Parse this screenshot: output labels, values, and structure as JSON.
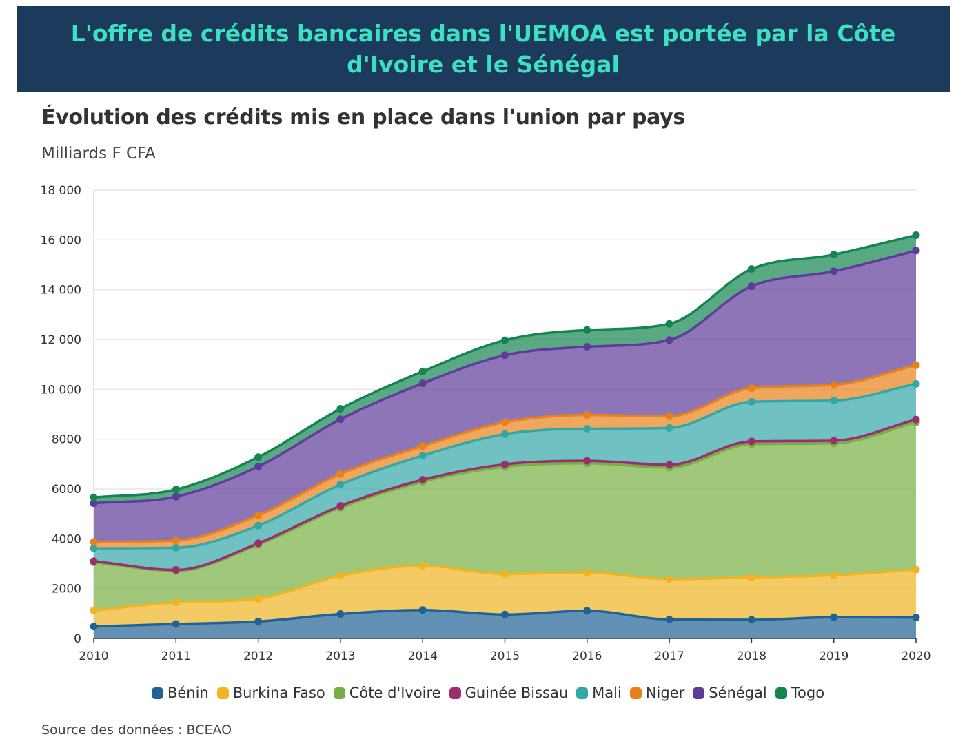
{
  "banner": {
    "title": "L'offre de crédits bancaires dans l'UEMOA est portée par la Côte d'Ivoire et le Sénégal"
  },
  "source": "Source des données : BCEAO",
  "chart_data": {
    "type": "area",
    "stacked": true,
    "title": "Évolution des crédits mis en place dans l'union par pays",
    "subtitle": "Milliards F CFA",
    "xlabel": "",
    "ylabel": "",
    "x": [
      2010,
      2011,
      2012,
      2013,
      2014,
      2015,
      2016,
      2017,
      2018,
      2019,
      2020
    ],
    "x_tick_labels": [
      "2010",
      "2011",
      "2012",
      "2013",
      "2014",
      "2015",
      "2016",
      "2017",
      "2018",
      "2019",
      "2020"
    ],
    "ylim": [
      0,
      18000
    ],
    "y_ticks": [
      0,
      2000,
      4000,
      6000,
      8000,
      10000,
      12000,
      14000,
      16000,
      18000
    ],
    "y_tick_labels": [
      "0",
      "2000",
      "4000",
      "6000",
      "8000",
      "10 000",
      "12 000",
      "14 000",
      "16 000",
      "18 000"
    ],
    "grid": true,
    "legend_position": "bottom",
    "series": [
      {
        "name": "Bénin",
        "color": "#1f6396",
        "values": [
          480,
          580,
          680,
          980,
          1140,
          960,
          1110,
          760,
          750,
          850,
          840
        ]
      },
      {
        "name": "Burkina Faso",
        "color": "#f0b323",
        "values": [
          640,
          870,
          920,
          1540,
          1780,
          1630,
          1540,
          1620,
          1700,
          1690,
          1920
        ]
      },
      {
        "name": "Côte d'Ivoire",
        "color": "#76b041",
        "values": [
          1940,
          1260,
          2160,
          2730,
          3370,
          4300,
          4380,
          4480,
          5350,
          5290,
          5920
        ]
      },
      {
        "name": "Guinée Bissau",
        "color": "#9b2d6e",
        "values": [
          40,
          40,
          60,
          70,
          80,
          100,
          100,
          110,
          110,
          110,
          110
        ]
      },
      {
        "name": "Mali",
        "color": "#33a6a6",
        "values": [
          520,
          890,
          710,
          860,
          970,
          1210,
          1290,
          1480,
          1590,
          1610,
          1430
        ]
      },
      {
        "name": "Niger",
        "color": "#e8811a",
        "values": [
          250,
          290,
          410,
          420,
          380,
          480,
          550,
          470,
          550,
          630,
          750
        ]
      },
      {
        "name": "Sénégal",
        "color": "#5d3b98",
        "values": [
          1560,
          1760,
          1960,
          2200,
          2520,
          2690,
          2740,
          3060,
          4090,
          4560,
          4600
        ]
      },
      {
        "name": "Togo",
        "color": "#148451",
        "values": [
          230,
          290,
          380,
          420,
          480,
          600,
          670,
          650,
          690,
          670,
          620
        ]
      }
    ]
  }
}
